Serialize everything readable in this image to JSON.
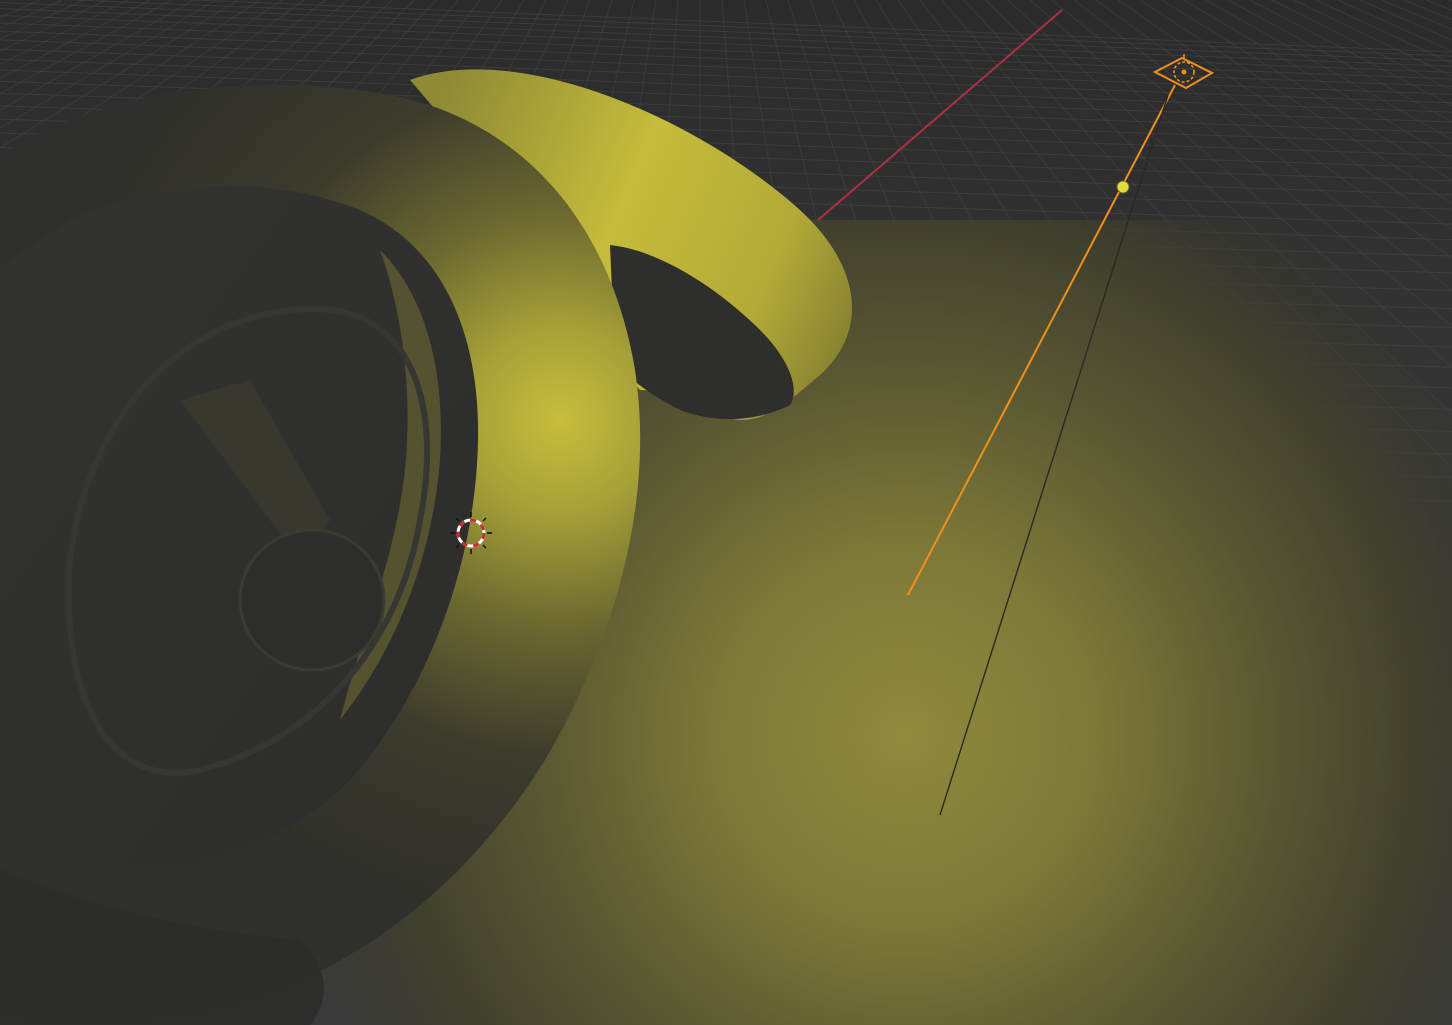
{
  "viewport": {
    "type": "3D Viewport",
    "shading": "solid",
    "background_color": "#3a3a3a",
    "grid_color": "#4a4a4a"
  },
  "scene": {
    "floor_light_color": "#8f8a3c",
    "object_color": "#c4bc3a",
    "shadow_color": "#303030",
    "objects": [
      "torus-knot-mesh",
      "spot-light"
    ],
    "selected": "spot-light"
  },
  "axes": {
    "x_axis_color": "#b03040"
  },
  "selection": {
    "selection_color": "#f0901c",
    "light_handle_color": "#e2dc3a"
  },
  "cursor": {
    "icon": "3d-cursor-icon",
    "ring_color_a": "#d02830",
    "ring_color_b": "#ffffff"
  }
}
